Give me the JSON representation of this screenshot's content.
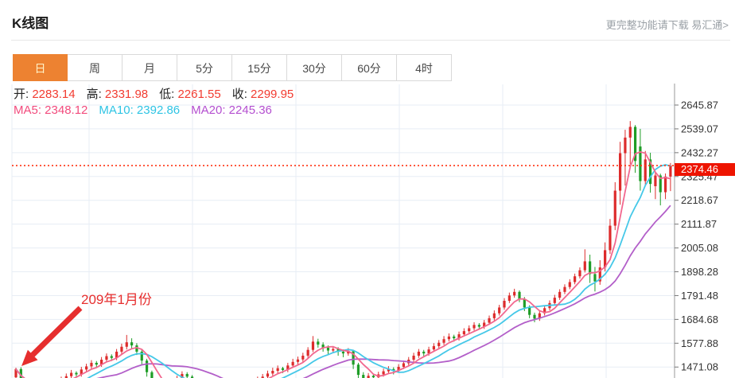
{
  "header": {
    "title": "K线图",
    "more_link": "更完整功能请下载 易汇通>"
  },
  "tabs": {
    "active_index": 0,
    "items": [
      {
        "id": "day",
        "label": "日"
      },
      {
        "id": "week",
        "label": "周"
      },
      {
        "id": "month",
        "label": "月"
      },
      {
        "id": "5min",
        "label": "5分"
      },
      {
        "id": "15min",
        "label": "15分"
      },
      {
        "id": "30min",
        "label": "30分"
      },
      {
        "id": "60min",
        "label": "60分"
      },
      {
        "id": "4hour",
        "label": "4时"
      }
    ]
  },
  "info": {
    "ohlc": [
      {
        "key": "open",
        "label": "开:",
        "value": "2283.14"
      },
      {
        "key": "high",
        "label": "高:",
        "value": "2331.98"
      },
      {
        "key": "low",
        "label": "低:",
        "value": "2261.55"
      },
      {
        "key": "close",
        "label": "收:",
        "value": "2299.95"
      }
    ],
    "ma": [
      {
        "key": "ma5",
        "label": "MA5:",
        "value": "2348.12",
        "color": "#f24b7d"
      },
      {
        "key": "ma10",
        "label": "MA10:",
        "value": "2392.86",
        "color": "#2ec4e4"
      },
      {
        "key": "ma20",
        "label": "MA20:",
        "value": "2245.36",
        "color": "#b44fd0"
      }
    ]
  },
  "annotation": {
    "text": "209年1月份"
  },
  "chart_data": {
    "type": "candlestick",
    "title": "K线图",
    "timeframe": "日",
    "grid": true,
    "y_axis_side": "right",
    "price_axis_ticks": [
      "2645.87",
      "2539.07",
      "2432.27",
      "2325.47",
      "2218.67",
      "2111.87",
      "2005.08",
      "1898.28",
      "1791.48",
      "1684.68",
      "1577.88",
      "1471.08"
    ],
    "axis_top_value": 2645.87,
    "axis_step": 106.8,
    "current_price": 2374.46,
    "current_price_label": "2374.46",
    "ma_periods": [
      5,
      10,
      20
    ],
    "ma_legend_values": {
      "MA5": 2348.12,
      "MA10": 2392.86,
      "MA20": 2245.36
    },
    "colors": {
      "up": "#dd2b2b",
      "down": "#1f9d27",
      "ma5": "#f2688f",
      "ma10": "#45c8e8",
      "ma20": "#b35fc9",
      "grid": "#e7edf5",
      "axis": "#9a9a9a",
      "tick_label": "#333333",
      "dotted_line": "#ff3312",
      "price_tag_bg": "#ee1400",
      "accent_orange": "#ed8231",
      "annotation_red": "#e62e2e",
      "value_red": "#f23b30"
    },
    "candles_format": [
      "open",
      "high",
      "low",
      "close"
    ],
    "candles": [
      [
        1425,
        1468,
        1405,
        1462
      ],
      [
        1462,
        1470,
        1390,
        1405
      ],
      [
        1405,
        1415,
        1362,
        1378
      ],
      [
        1378,
        1390,
        1345,
        1362
      ],
      [
        1362,
        1382,
        1350,
        1370
      ],
      [
        1370,
        1378,
        1342,
        1358
      ],
      [
        1358,
        1378,
        1348,
        1367
      ],
      [
        1367,
        1395,
        1355,
        1384
      ],
      [
        1384,
        1410,
        1372,
        1399
      ],
      [
        1399,
        1428,
        1388,
        1416
      ],
      [
        1416,
        1442,
        1405,
        1430
      ],
      [
        1430,
        1458,
        1420,
        1445
      ],
      [
        1445,
        1452,
        1425,
        1438
      ],
      [
        1438,
        1472,
        1428,
        1460
      ],
      [
        1460,
        1486,
        1448,
        1474
      ],
      [
        1474,
        1502,
        1462,
        1490
      ],
      [
        1490,
        1498,
        1470,
        1482
      ],
      [
        1482,
        1516,
        1472,
        1504
      ],
      [
        1504,
        1532,
        1492,
        1520
      ],
      [
        1520,
        1528,
        1498,
        1512
      ],
      [
        1512,
        1552,
        1502,
        1540
      ],
      [
        1540,
        1576,
        1530,
        1562
      ],
      [
        1562,
        1615,
        1550,
        1582
      ],
      [
        1582,
        1600,
        1552,
        1568
      ],
      [
        1568,
        1578,
        1525,
        1540
      ],
      [
        1540,
        1550,
        1480,
        1500
      ],
      [
        1500,
        1508,
        1428,
        1448
      ],
      [
        1448,
        1455,
        1385,
        1404
      ],
      [
        1404,
        1415,
        1362,
        1380
      ],
      [
        1380,
        1390,
        1345,
        1362
      ],
      [
        1362,
        1382,
        1352,
        1372
      ],
      [
        1372,
        1398,
        1362,
        1388
      ],
      [
        1388,
        1432,
        1380,
        1422
      ],
      [
        1422,
        1452,
        1410,
        1440
      ],
      [
        1440,
        1448,
        1412,
        1428
      ],
      [
        1428,
        1435,
        1388,
        1404
      ],
      [
        1404,
        1412,
        1370,
        1384
      ],
      [
        1384,
        1392,
        1355,
        1370
      ],
      [
        1370,
        1378,
        1342,
        1358
      ],
      [
        1358,
        1365,
        1335,
        1352
      ],
      [
        1352,
        1372,
        1342,
        1360
      ],
      [
        1360,
        1368,
        1340,
        1354
      ],
      [
        1354,
        1376,
        1345,
        1366
      ],
      [
        1366,
        1385,
        1356,
        1374
      ],
      [
        1374,
        1382,
        1352,
        1368
      ],
      [
        1368,
        1392,
        1358,
        1382
      ],
      [
        1382,
        1405,
        1372,
        1394
      ],
      [
        1394,
        1418,
        1384,
        1406
      ],
      [
        1406,
        1428,
        1396,
        1416
      ],
      [
        1416,
        1440,
        1406,
        1428
      ],
      [
        1428,
        1455,
        1418,
        1442
      ],
      [
        1442,
        1468,
        1432,
        1454
      ],
      [
        1454,
        1478,
        1442,
        1466
      ],
      [
        1466,
        1472,
        1444,
        1458
      ],
      [
        1458,
        1490,
        1448,
        1478
      ],
      [
        1478,
        1508,
        1468,
        1494
      ],
      [
        1494,
        1518,
        1482,
        1505
      ],
      [
        1505,
        1535,
        1495,
        1522
      ],
      [
        1522,
        1560,
        1512,
        1548
      ],
      [
        1548,
        1610,
        1538,
        1585
      ],
      [
        1585,
        1598,
        1558,
        1572
      ],
      [
        1572,
        1582,
        1540,
        1558
      ],
      [
        1558,
        1568,
        1528,
        1545
      ],
      [
        1545,
        1565,
        1535,
        1552
      ],
      [
        1552,
        1560,
        1522,
        1540
      ],
      [
        1540,
        1550,
        1515,
        1532
      ],
      [
        1532,
        1556,
        1522,
        1542
      ],
      [
        1542,
        1548,
        1462,
        1482
      ],
      [
        1482,
        1490,
        1418,
        1436
      ],
      [
        1436,
        1448,
        1402,
        1420
      ],
      [
        1420,
        1444,
        1410,
        1432
      ],
      [
        1432,
        1440,
        1408,
        1425
      ],
      [
        1425,
        1450,
        1415,
        1438
      ],
      [
        1438,
        1464,
        1428,
        1452
      ],
      [
        1452,
        1475,
        1442,
        1462
      ],
      [
        1462,
        1470,
        1438,
        1455
      ],
      [
        1455,
        1484,
        1445,
        1472
      ],
      [
        1472,
        1500,
        1462,
        1488
      ],
      [
        1488,
        1516,
        1478,
        1504
      ],
      [
        1504,
        1535,
        1494,
        1522
      ],
      [
        1522,
        1552,
        1512,
        1540
      ],
      [
        1540,
        1548,
        1518,
        1532
      ],
      [
        1532,
        1562,
        1522,
        1550
      ],
      [
        1550,
        1578,
        1540,
        1565
      ],
      [
        1565,
        1592,
        1555,
        1580
      ],
      [
        1580,
        1610,
        1570,
        1596
      ],
      [
        1596,
        1622,
        1586,
        1608
      ],
      [
        1608,
        1616,
        1585,
        1600
      ],
      [
        1600,
        1630,
        1590,
        1618
      ],
      [
        1618,
        1645,
        1608,
        1632
      ],
      [
        1632,
        1658,
        1622,
        1645
      ],
      [
        1645,
        1672,
        1635,
        1660
      ],
      [
        1660,
        1668,
        1638,
        1652
      ],
      [
        1652,
        1682,
        1642,
        1670
      ],
      [
        1670,
        1702,
        1660,
        1690
      ],
      [
        1690,
        1725,
        1680,
        1712
      ],
      [
        1712,
        1750,
        1702,
        1738
      ],
      [
        1738,
        1780,
        1728,
        1768
      ],
      [
        1768,
        1805,
        1758,
        1792
      ],
      [
        1792,
        1822,
        1782,
        1808
      ],
      [
        1808,
        1815,
        1762,
        1775
      ],
      [
        1775,
        1785,
        1722,
        1738
      ],
      [
        1738,
        1748,
        1690,
        1705
      ],
      [
        1705,
        1715,
        1672,
        1688
      ],
      [
        1688,
        1724,
        1678,
        1712
      ],
      [
        1712,
        1748,
        1702,
        1735
      ],
      [
        1735,
        1770,
        1725,
        1758
      ],
      [
        1758,
        1795,
        1748,
        1782
      ],
      [
        1782,
        1820,
        1772,
        1808
      ],
      [
        1808,
        1842,
        1798,
        1830
      ],
      [
        1830,
        1865,
        1820,
        1852
      ],
      [
        1852,
        1890,
        1842,
        1878
      ],
      [
        1878,
        1918,
        1868,
        1905
      ],
      [
        1905,
        1999,
        1895,
        1945
      ],
      [
        1945,
        1975,
        1848,
        1888
      ],
      [
        1888,
        1920,
        1810,
        1855
      ],
      [
        1855,
        1950,
        1840,
        1918
      ],
      [
        1918,
        2030,
        1900,
        1995
      ],
      [
        1995,
        2135,
        1978,
        2105
      ],
      [
        2105,
        2300,
        2085,
        2262
      ],
      [
        2262,
        2481,
        2199,
        2430
      ],
      [
        2430,
        2535,
        2285,
        2500
      ],
      [
        2500,
        2574,
        2380,
        2548
      ],
      [
        2548,
        2556,
        2342,
        2395
      ],
      [
        2460,
        2539,
        2262,
        2305
      ],
      [
        2305,
        2440,
        2285,
        2402
      ],
      [
        2402,
        2432,
        2253,
        2292
      ],
      [
        2282,
        2342,
        2224,
        2330
      ],
      [
        2330,
        2338,
        2196,
        2255
      ],
      [
        2255,
        2339,
        2224,
        2325
      ],
      [
        2325,
        2386,
        2260,
        2374.46
      ]
    ]
  }
}
